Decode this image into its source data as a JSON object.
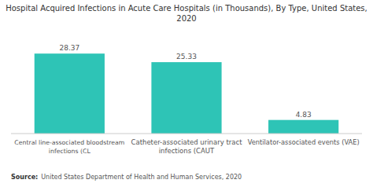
{
  "chart_data": {
    "type": "bar",
    "title": "Hospital Acquired Infections in Acute Care Hospitals (in Thousands), By Type, United States,",
    "subtitle": "2020",
    "categories": [
      "Central line-associated bloodstream\ninfections (CL",
      "Catheter-associated urinary tract\ninfections (CAUT",
      "Ventilator-associated events (VAE)"
    ],
    "values": [
      28.37,
      25.33,
      4.83
    ],
    "color": "#2EC4B6",
    "ylim": [
      0,
      34
    ],
    "grid": false,
    "data_labels": true,
    "tick_labels": "x",
    "annotations": [
      "Source:",
      "  United States Department of Health and Human Services, 2020"
    ]
  }
}
